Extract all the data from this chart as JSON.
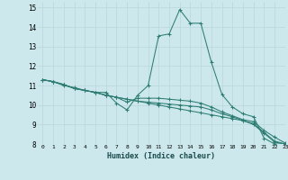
{
  "xlabel": "Humidex (Indice chaleur)",
  "background_color": "#cce8ec",
  "grid_color": "#b8d8dc",
  "line_color": "#2e7d72",
  "xlim": [
    -0.5,
    23
  ],
  "ylim": [
    8,
    15.3
  ],
  "xticks": [
    0,
    1,
    2,
    3,
    4,
    5,
    6,
    7,
    8,
    9,
    10,
    11,
    12,
    13,
    14,
    15,
    16,
    17,
    18,
    19,
    20,
    21,
    22,
    23
  ],
  "yticks": [
    8,
    9,
    10,
    11,
    12,
    13,
    14,
    15
  ],
  "series": [
    [
      11.3,
      11.2,
      11.0,
      10.9,
      10.75,
      10.65,
      10.65,
      10.1,
      9.75,
      10.5,
      11.0,
      13.55,
      13.65,
      14.9,
      14.2,
      14.2,
      12.2,
      10.55,
      9.9,
      9.55,
      9.4,
      8.3,
      8.0,
      8.0
    ],
    [
      11.3,
      11.2,
      11.05,
      10.85,
      10.75,
      10.65,
      10.5,
      10.4,
      10.15,
      10.35,
      10.35,
      10.35,
      10.3,
      10.25,
      10.2,
      10.1,
      9.9,
      9.65,
      9.45,
      9.25,
      9.15,
      8.7,
      8.35,
      8.05
    ],
    [
      11.3,
      11.2,
      11.05,
      10.85,
      10.75,
      10.65,
      10.5,
      10.4,
      10.3,
      10.2,
      10.15,
      10.1,
      10.05,
      10.0,
      9.95,
      9.9,
      9.75,
      9.55,
      9.4,
      9.2,
      9.05,
      8.6,
      8.15,
      8.0
    ],
    [
      11.3,
      11.2,
      11.05,
      10.85,
      10.75,
      10.65,
      10.5,
      10.4,
      10.3,
      10.2,
      10.1,
      10.0,
      9.9,
      9.8,
      9.7,
      9.6,
      9.5,
      9.4,
      9.3,
      9.2,
      9.0,
      8.55,
      8.1,
      8.0
    ]
  ]
}
